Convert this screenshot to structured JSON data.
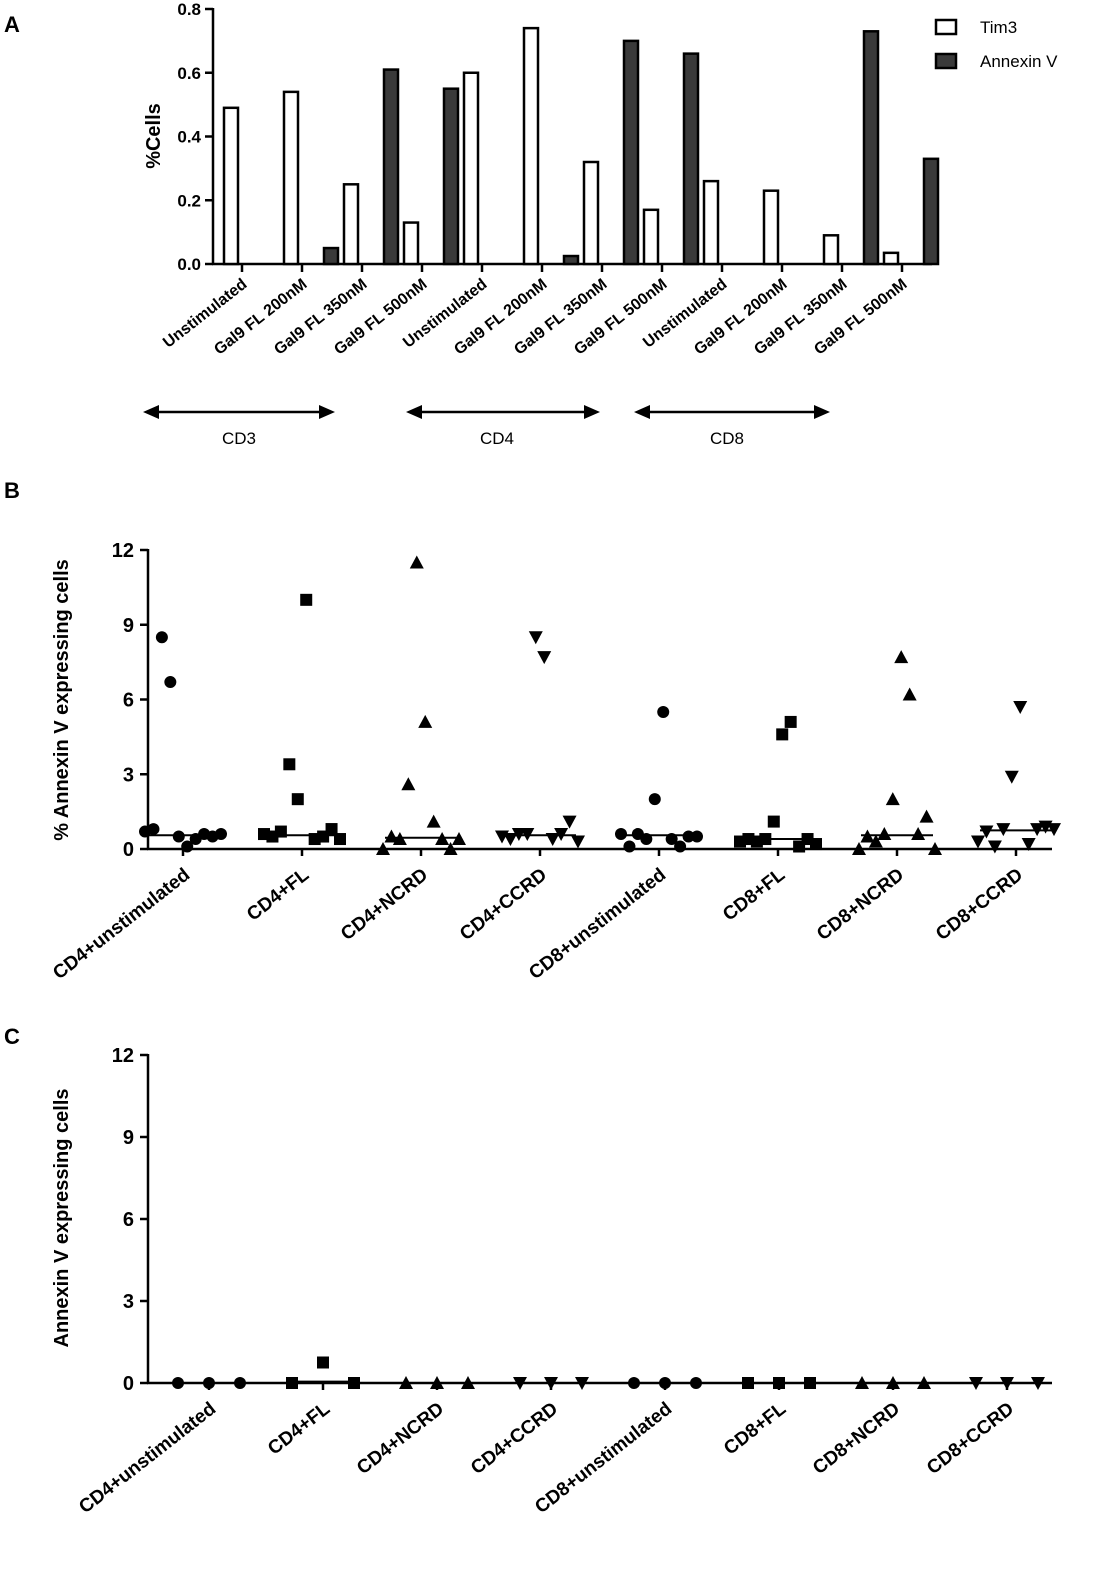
{
  "chart_data": [
    {
      "panel": "A",
      "type": "bar",
      "ylabel": "%Cells",
      "ylim": [
        0,
        0.8
      ],
      "yticks": [
        "0.0",
        "0.2",
        "0.4",
        "0.6",
        "0.8"
      ],
      "categories": [
        "Unstimulated",
        "Gal9 FL 200nM",
        "Gal9 FL 350nM",
        "Gal9 FL 500nM",
        "Unstimulated",
        "Gal9 FL 200nM",
        "Gal9 FL 350nM",
        "Gal9 FL 500nM",
        "Unstimulated",
        "Gal9 FL 200nM",
        "Gal9 FL 350nM",
        "Gal9 FL 500nM"
      ],
      "series": [
        {
          "name": "Tim3",
          "fill": "#ffffff",
          "values": [
            0.49,
            0.54,
            0.25,
            0.13,
            0.6,
            0.74,
            0.32,
            0.17,
            0.26,
            0.23,
            0.09,
            0.035
          ]
        },
        {
          "name": "Annexin V",
          "fill": "#3a3a3a",
          "values": [
            0,
            0.05,
            0.61,
            0.55,
            0,
            0.025,
            0.7,
            0.66,
            0,
            0,
            0.73,
            0.33
          ]
        }
      ],
      "groups": [
        "CD3",
        "CD4",
        "CD8"
      ],
      "legend_position": "top-right"
    },
    {
      "panel": "B",
      "type": "scatter",
      "ylabel": "% Annexin V expressing cells",
      "ylim": [
        0,
        12
      ],
      "yticks": [
        "0",
        "3",
        "6",
        "9",
        "12"
      ],
      "categories": [
        "CD4+unstimulated",
        "CD4+FL",
        "CD4+NCRD",
        "CD4+CCRD",
        "CD8+unstimulated",
        "CD8+FL",
        "CD8+NCRD",
        "CD8+CCRD"
      ],
      "markers": [
        "circle",
        "square",
        "triangle-up",
        "triangle-down",
        "circle",
        "square",
        "triangle-up",
        "triangle-down"
      ],
      "points": [
        [
          0.7,
          0.8,
          8.5,
          6.7,
          0.5,
          0.1,
          0.4,
          0.6,
          0.5,
          0.6
        ],
        [
          0.6,
          0.5,
          0.7,
          3.4,
          2.0,
          10.0,
          0.4,
          0.5,
          0.8,
          0.4
        ],
        [
          0.0,
          0.5,
          0.4,
          2.6,
          11.5,
          5.1,
          1.1,
          0.4,
          0.0,
          0.4
        ],
        [
          0.5,
          0.4,
          0.6,
          0.6,
          8.5,
          7.7,
          0.4,
          0.6,
          1.1,
          0.3
        ],
        [
          0.6,
          0.1,
          0.6,
          0.4,
          2.0,
          5.5,
          0.4,
          0.1,
          0.5,
          0.5
        ],
        [
          0.3,
          0.4,
          0.3,
          0.4,
          1.1,
          4.6,
          5.1,
          0.1,
          0.4,
          0.2
        ],
        [
          0.0,
          0.5,
          0.3,
          0.6,
          2.0,
          7.7,
          6.2,
          0.6,
          1.3,
          0.0
        ],
        [
          0.3,
          0.7,
          0.1,
          0.8,
          2.9,
          5.7,
          0.2,
          0.8,
          0.9,
          0.8
        ]
      ],
      "medians": [
        0.55,
        0.55,
        0.45,
        0.55,
        0.55,
        0.4,
        0.55,
        0.75
      ]
    },
    {
      "panel": "C",
      "type": "scatter",
      "ylabel": "Annexin V expressing cells",
      "ylim": [
        0,
        12
      ],
      "yticks": [
        "0",
        "3",
        "6",
        "9",
        "12"
      ],
      "categories": [
        "CD4+unstimulated",
        "CD4+FL",
        "CD4+NCRD",
        "CD4+CCRD",
        "CD8+unstimulated",
        "CD8+FL",
        "CD8+NCRD",
        "CD8+CCRD"
      ],
      "markers": [
        "circle",
        "square",
        "triangle-up",
        "triangle-down",
        "circle",
        "square",
        "triangle-up",
        "triangle-down"
      ],
      "points": [
        [
          0,
          0,
          0
        ],
        [
          0,
          0.75,
          0
        ],
        [
          0,
          0,
          0
        ],
        [
          0,
          0,
          0
        ],
        [
          0,
          0,
          0
        ],
        [
          0,
          0,
          0
        ],
        [
          0,
          0,
          0
        ],
        [
          0,
          0,
          0
        ]
      ],
      "medians": [
        0,
        0.05,
        0,
        0,
        0,
        0,
        0,
        0
      ]
    }
  ]
}
